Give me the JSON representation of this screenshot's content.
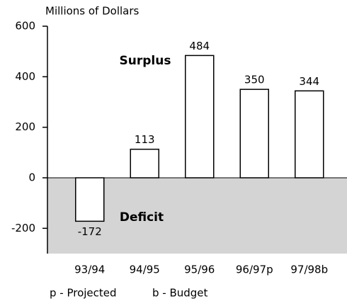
{
  "chart_data": {
    "type": "bar",
    "y_axis_label": "Millions of Dollars",
    "categories": [
      "93/94",
      "94/95",
      "95/96",
      "96/97p",
      "97/98b"
    ],
    "values": [
      -172,
      113,
      484,
      350,
      344
    ],
    "color": "#ffffff",
    "ylim": [
      -300,
      600
    ],
    "yticks": [
      -200,
      0,
      200,
      400,
      600
    ],
    "annotations": [
      "Surplus",
      "Deficit"
    ],
    "notes": [
      "p - Projected",
      "b - Budget"
    ],
    "negative_region_color": "#d4d4d4"
  }
}
